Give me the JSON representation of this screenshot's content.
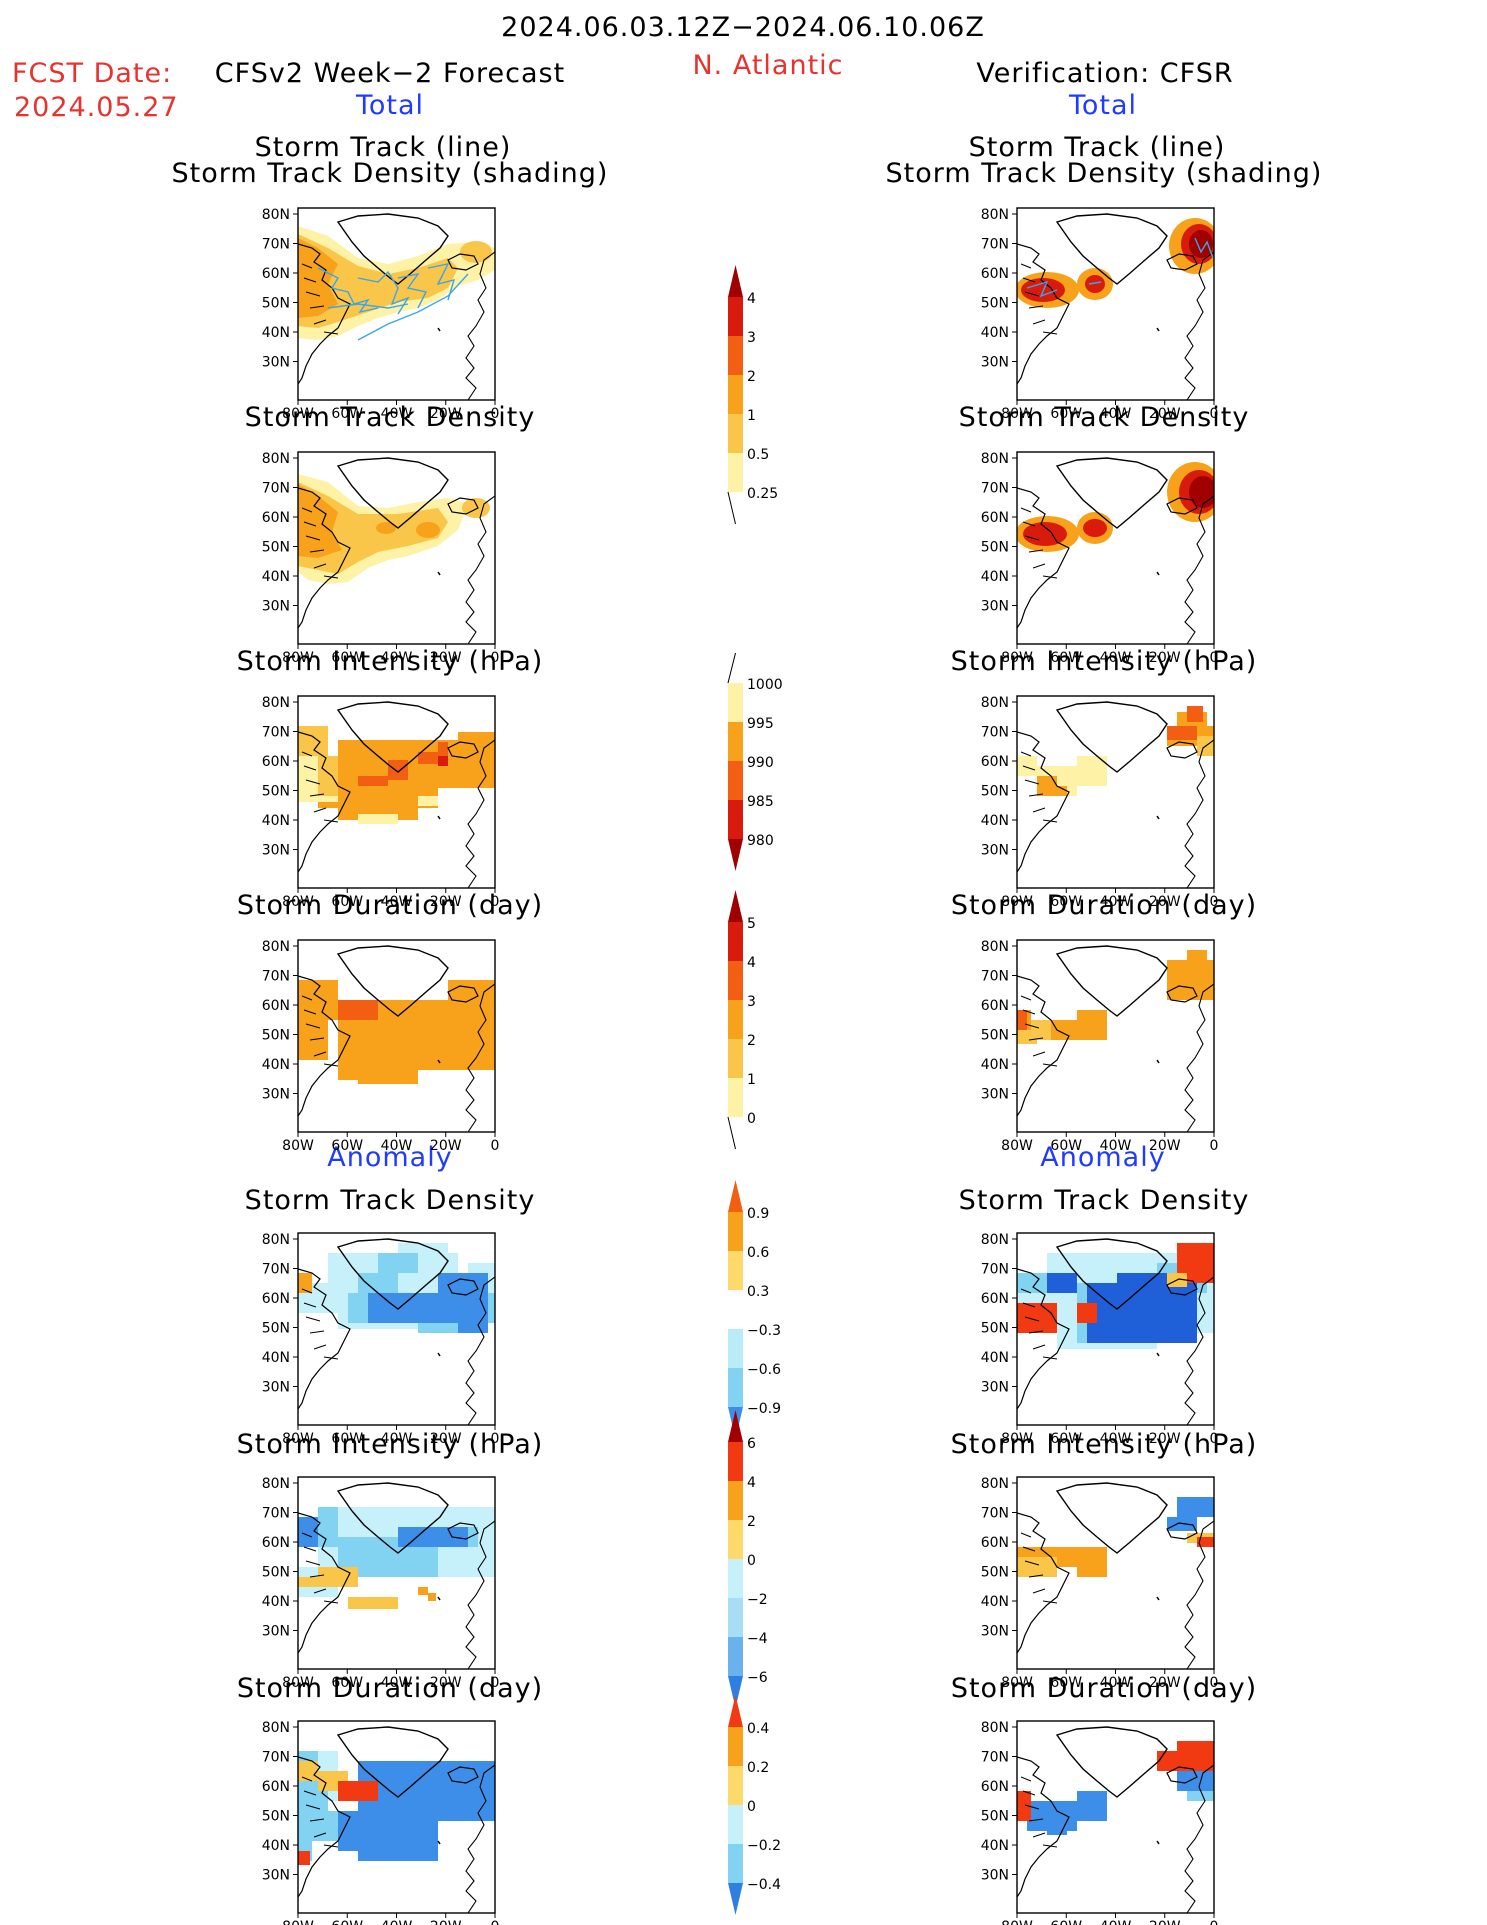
{
  "header": {
    "date_range": "2024.06.03.12Z−2024.06.10.06Z",
    "region": "N. Atlantic",
    "fcst_date_label": "FCST Date:",
    "fcst_date_value": "2024.05.27",
    "left_title": "CFSv2 Week−2 Forecast",
    "right_title": "Verification: CFSR",
    "section_total": "Total",
    "section_anomaly": "Anomaly"
  },
  "panel_titles": {
    "track_line": "Storm Track (line)",
    "track_shading": "Storm Track Density (shading)",
    "density": "Storm Track Density",
    "intensity": "Storm Intensity (hPa)",
    "duration": "Storm Duration (day)"
  },
  "map_axes": {
    "lon_labels": [
      "80W",
      "60W",
      "40W",
      "20W",
      "0"
    ],
    "lat_labels": [
      "80N",
      "70N",
      "60N",
      "50N",
      "40N",
      "30N"
    ]
  },
  "colorbars": [
    {
      "id": "density",
      "labels": [
        "4",
        "3",
        "2",
        "1",
        "0.5",
        "0.25"
      ],
      "colors": [
        "#a00000",
        "#d81b0c",
        "#f25e12",
        "#f7a21a",
        "#fac64a",
        "#fdf2a6"
      ],
      "end": "upper"
    },
    {
      "id": "intensity",
      "labels": [
        "1000",
        "995",
        "990",
        "985",
        "980"
      ],
      "colors": [
        "#fdf2a6",
        "#f7a21a",
        "#f25e12",
        "#d81b0c",
        "#a00000"
      ],
      "end": "lower"
    },
    {
      "id": "duration",
      "labels": [
        "5",
        "4",
        "3",
        "2",
        "1",
        "0"
      ],
      "colors": [
        "#a00000",
        "#d81b0c",
        "#f25e12",
        "#f7a21a",
        "#fac64a",
        "#fdf2a6"
      ],
      "end": "upper"
    },
    {
      "id": "density_anom",
      "labels": [
        "0.9",
        "0.6",
        "0.3",
        "−0.3",
        "−0.6",
        "−0.9"
      ],
      "colors": [
        "#f25e12",
        "#f7a21a",
        "#fcd96a",
        "#ffffff",
        "#b9ecf6",
        "#82d2f2",
        "#3c8ee8"
      ],
      "end": "both"
    },
    {
      "id": "intensity_anom",
      "labels": [
        "6",
        "4",
        "2",
        "0",
        "−2",
        "−4",
        "−6"
      ],
      "colors": [
        "#a00000",
        "#f23a12",
        "#f7a21a",
        "#fcd96a",
        "#c6f0fa",
        "#a8ddf6",
        "#6ab2ee",
        "#2f7fe0"
      ],
      "end": "both"
    },
    {
      "id": "duration_anom",
      "labels": [
        "0.4",
        "0.2",
        "0",
        "−0.2",
        "−0.4"
      ],
      "colors": [
        "#f23a12",
        "#f7a21a",
        "#fcd96a",
        "#c6f0fa",
        "#82d2f2",
        "#2f7fe0"
      ],
      "end": "both"
    }
  ],
  "colors": {
    "red_text": "#e8322e",
    "blue_text": "#1f3bff",
    "track_line": "#3aa6e8"
  }
}
